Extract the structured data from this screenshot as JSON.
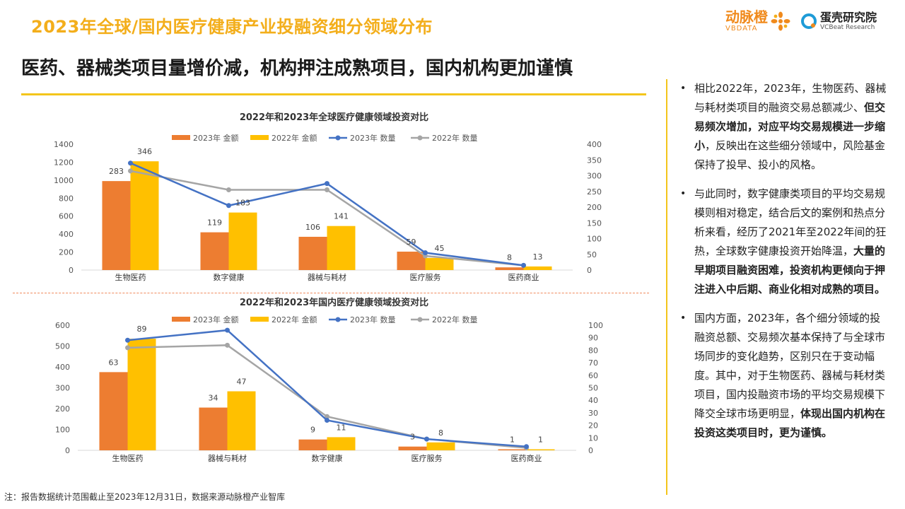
{
  "header": {
    "title": "2023年全球/国内医疗健康产业投融资细分领域分布",
    "logo_vb_cn": "动脉橙",
    "logo_vb_en": "VBDATA",
    "logo_vc_cn": "蛋壳研究院",
    "logo_vc_en": "VCBeat Research"
  },
  "headline": "医药、器械类项目量增价减，机构押注成熟项目，国内机构更加谨慎",
  "bullets": [
    {
      "p1": "相比2022年，2023年，生物医药、器械与耗材类项目的融资交易总额减少、",
      "b1": "但交易频次增加，对应平均交易规模进一步缩小",
      "p2": "，反映出在这些细分领域中，风险基金保持了投早、投小的风格。"
    },
    {
      "p1": "与此同时，数字健康类项目的平均交易规模则相对稳定，结合后文的案例和热点分析来看，经历了2021年至2022年间的狂热，全球数字健康投资开始降温，",
      "b1": "大量的早期项目融资困难，投资机构更倾向于押注进入中后期、商业化相对成熟的项目。",
      "p2": ""
    },
    {
      "p1": "国内方面，2023年，各个细分领域的投融资总额、交易频次基本保持了与全球市场同步的变化趋势，区别只在于变动幅度。其中，对于生物医药、器械与耗材类项目，国内投融资市场的平均交易规模下降交全球市场更明显，",
      "b1": "体现出国内机构在投资这类项目时，更为谨慎。",
      "p2": ""
    }
  ],
  "footnote": "注：报告数据统计范围截止至2023年12月31日，数据来源动脉橙产业智库",
  "colors": {
    "bar2023": "#ED7D31",
    "bar2022": "#FFC000",
    "line2023": "#4472C4",
    "line2022": "#A5A5A5",
    "accent": "#F3C51B"
  },
  "chart_data": [
    {
      "type": "bar",
      "title": "2022年和2023年全球医疗健康领域投资对比",
      "categories": [
        "生物医药",
        "数字健康",
        "器械与耗材",
        "医疗服务",
        "医药商业"
      ],
      "series": [
        {
          "name": "2023年 金额",
          "kind": "bar",
          "axis": "left",
          "values": [
            990,
            420,
            370,
            205,
            30
          ]
        },
        {
          "name": "2022年 金额",
          "kind": "bar",
          "axis": "left",
          "values": [
            1210,
            640,
            490,
            135,
            40
          ]
        },
        {
          "name": "2023年 数量",
          "kind": "line",
          "axis": "right",
          "values": [
            340,
            205,
            275,
            55,
            15
          ]
        },
        {
          "name": "2022年 数量",
          "kind": "line",
          "axis": "right",
          "values": [
            315,
            255,
            255,
            45,
            15
          ]
        }
      ],
      "data_labels_2023": [
        "283",
        "119",
        "106",
        "59",
        "8"
      ],
      "data_labels_2022": [
        "346",
        "183",
        "141",
        "45",
        "13"
      ],
      "ylim": [
        0,
        1400
      ],
      "yticks": [
        "0",
        "200",
        "400",
        "600",
        "800",
        "1000",
        "1200",
        "1400"
      ],
      "y2lim": [
        0,
        400
      ],
      "y2ticks": [
        "0",
        "50",
        "100",
        "150",
        "200",
        "250",
        "300",
        "350",
        "400"
      ],
      "legend_position": "top"
    },
    {
      "type": "bar",
      "title": "2022年和2023年国内医疗健康领域投资对比",
      "categories": [
        "生物医药",
        "器械与耗材",
        "数字健康",
        "医疗服务",
        "医药商业"
      ],
      "series": [
        {
          "name": "2023年 金额",
          "kind": "bar",
          "axis": "left",
          "values": [
            375,
            205,
            52,
            18,
            5
          ]
        },
        {
          "name": "2022年 金额",
          "kind": "bar",
          "axis": "left",
          "values": [
            535,
            283,
            63,
            38,
            5
          ]
        },
        {
          "name": "2023年 数量",
          "kind": "line",
          "axis": "right",
          "values": [
            88,
            96,
            24,
            9,
            3
          ]
        },
        {
          "name": "2022年 数量",
          "kind": "line",
          "axis": "right",
          "values": [
            82,
            84,
            27,
            9,
            2
          ]
        }
      ],
      "data_labels_2023": [
        "63",
        "34",
        "9",
        "3",
        "1"
      ],
      "data_labels_2022": [
        "89",
        "47",
        "11",
        "8",
        "1"
      ],
      "ylim": [
        0,
        600
      ],
      "yticks": [
        "0",
        "100",
        "200",
        "300",
        "400",
        "500",
        "600"
      ],
      "y2lim": [
        0,
        100
      ],
      "y2ticks": [
        "0",
        "10",
        "20",
        "30",
        "40",
        "50",
        "60",
        "70",
        "80",
        "90",
        "100"
      ],
      "legend_position": "top"
    }
  ]
}
